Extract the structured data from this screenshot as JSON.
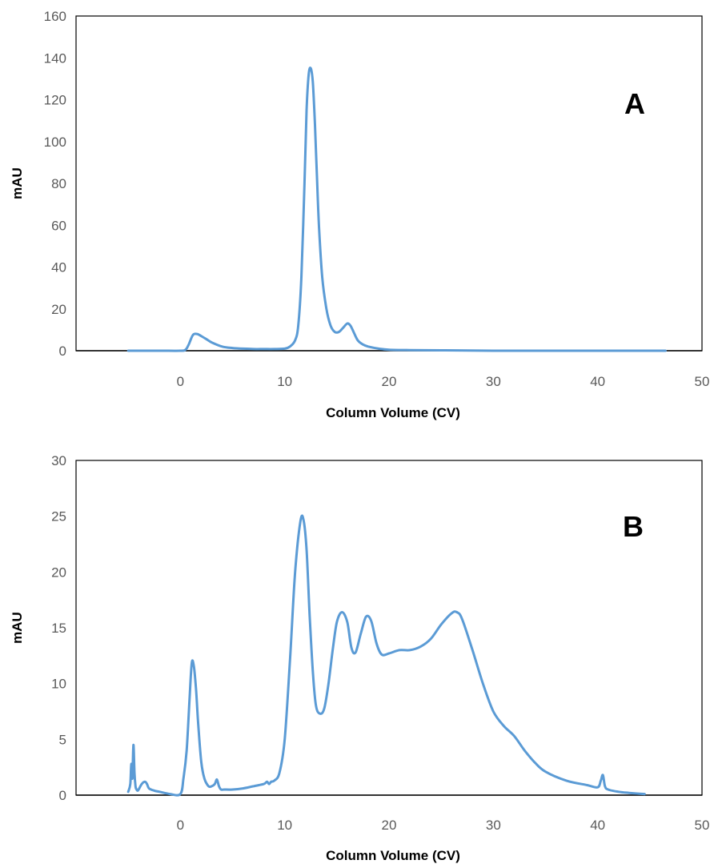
{
  "colors": {
    "line": "#5b9bd5",
    "frame": "#000000",
    "text": "#595959"
  },
  "chart_data": [
    {
      "type": "line",
      "panel_label": "A",
      "xlabel": "Column Volume (CV)",
      "ylabel": "mAU",
      "xlim": [
        -10,
        50
      ],
      "ylim": [
        0,
        160
      ],
      "xticks": [
        "0",
        "10",
        "20",
        "30",
        "40",
        "50"
      ],
      "yticks": [
        "0",
        "20",
        "40",
        "60",
        "80",
        "100",
        "120",
        "140",
        "160"
      ],
      "grid": false,
      "series": [
        {
          "x": [
            -5,
            -2,
            0,
            0.5,
            0.8,
            1.2,
            1.6,
            2,
            2.5,
            3,
            4,
            5,
            6,
            7,
            8,
            9,
            10,
            10.5,
            11,
            11.3,
            11.6,
            11.9,
            12.1,
            12.3,
            12.5,
            12.7,
            12.9,
            13.1,
            13.3,
            13.6,
            14,
            14.4,
            14.8,
            15.2,
            15.6,
            16,
            16.3,
            16.6,
            17,
            17.5,
            18,
            19,
            20,
            22,
            25,
            30,
            40,
            46.5
          ],
          "y": [
            0,
            0,
            0,
            0.5,
            3,
            7.5,
            8,
            7,
            5.5,
            4,
            2,
            1.3,
            1,
            0.8,
            0.8,
            0.8,
            1,
            2,
            5,
            12,
            35,
            80,
            115,
            132,
            135,
            128,
            108,
            82,
            58,
            35,
            20,
            12,
            9,
            9,
            11,
            13,
            12,
            9,
            5,
            3,
            2,
            1,
            0.5,
            0.3,
            0.2,
            0,
            0,
            0
          ]
        }
      ]
    },
    {
      "type": "line",
      "panel_label": "B",
      "xlabel": "Column Volume (CV)",
      "ylabel": "mAU",
      "xlim": [
        -10,
        50
      ],
      "ylim": [
        0,
        30
      ],
      "xticks": [
        "0",
        "10",
        "20",
        "30",
        "40",
        "50"
      ],
      "yticks": [
        "0",
        "5",
        "10",
        "15",
        "20",
        "25",
        "30"
      ],
      "grid": false,
      "series": [
        {
          "x": [
            -5,
            -4.8,
            -4.7,
            -4.6,
            -4.5,
            -4.4,
            -4.3,
            -4.2,
            -4.1,
            -4,
            -3.7,
            -3.4,
            -3.2,
            -3,
            -2.5,
            -2,
            -1,
            0,
            0.3,
            0.6,
            0.9,
            1.1,
            1.3,
            1.5,
            1.7,
            2,
            2.3,
            2.7,
            3,
            3.3,
            3.5,
            3.7,
            3.9,
            4.2,
            5,
            6,
            7,
            8,
            8.3,
            8.5,
            8.7,
            9,
            9.5,
            10,
            10.5,
            11,
            11.5,
            11.8,
            12.1,
            12.4,
            12.7,
            13,
            13.4,
            13.8,
            14.2,
            14.6,
            15,
            15.5,
            16,
            16.4,
            16.8,
            17.3,
            17.8,
            18.3,
            18.8,
            19.3,
            20,
            21,
            22,
            23,
            24,
            25,
            26,
            26.5,
            27,
            28,
            29,
            30,
            31,
            32,
            33,
            34,
            35,
            37,
            39,
            40,
            40.3,
            40.5,
            40.7,
            41,
            42,
            43,
            44.5
          ],
          "y": [
            0.3,
            1,
            2.8,
            1.5,
            4.5,
            2,
            0.8,
            0.5,
            0.4,
            0.5,
            1,
            1.2,
            1,
            0.6,
            0.4,
            0.3,
            0.1,
            0.1,
            1.5,
            4,
            9,
            11.9,
            11.5,
            9.5,
            6.5,
            3,
            1.5,
            0.8,
            0.8,
            1,
            1.4,
            0.8,
            0.5,
            0.5,
            0.5,
            0.6,
            0.8,
            1,
            1.2,
            1,
            1.2,
            1.3,
            2,
            5,
            12,
            20,
            24.5,
            24.7,
            22,
            16,
            11,
            8,
            7.3,
            7.8,
            10,
            13,
            15.5,
            16.4,
            15.5,
            13.2,
            12.8,
            14.5,
            16,
            15.6,
            13.6,
            12.6,
            12.7,
            13,
            13,
            13.3,
            14,
            15.3,
            16.3,
            16.4,
            15.8,
            13,
            10,
            7.5,
            6.2,
            5.3,
            4,
            2.9,
            2.1,
            1.3,
            0.9,
            0.7,
            1.3,
            1.8,
            0.8,
            0.5,
            0.3,
            0.2,
            0.1
          ]
        }
      ]
    }
  ]
}
